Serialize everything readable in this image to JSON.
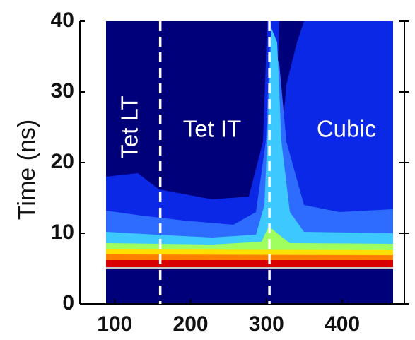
{
  "chart_data": {
    "type": "contour",
    "ylabel": "Time  (ns)",
    "xlim": [
      54,
      482
    ],
    "ylim": [
      0,
      40
    ],
    "xticks": [
      100,
      200,
      300,
      400
    ],
    "yticks": [
      0,
      10,
      20,
      30,
      40
    ],
    "boundaries": [
      160,
      304
    ],
    "boundary_color": "#ffffff",
    "annotations": [
      "Tet LT",
      "Tet IT",
      "Cubic"
    ]
  }
}
